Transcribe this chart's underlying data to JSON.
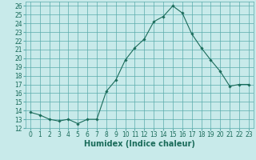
{
  "x": [
    0,
    1,
    2,
    3,
    4,
    5,
    6,
    7,
    8,
    9,
    10,
    11,
    12,
    13,
    14,
    15,
    16,
    17,
    18,
    19,
    20,
    21,
    22,
    23
  ],
  "y": [
    13.8,
    13.5,
    13.0,
    12.8,
    13.0,
    12.5,
    13.0,
    13.0,
    16.2,
    17.5,
    19.8,
    21.2,
    22.2,
    24.2,
    24.8,
    26.0,
    25.2,
    22.8,
    21.2,
    19.8,
    18.5,
    16.8,
    17.0,
    17.0
  ],
  "line_color": "#1a6b5a",
  "marker": "D",
  "marker_size": 1.8,
  "bg_color": "#c8eaea",
  "grid_color": "#5aabab",
  "xlabel": "Humidex (Indice chaleur)",
  "xlim": [
    -0.5,
    23.5
  ],
  "ylim": [
    12,
    26.5
  ],
  "yticks": [
    12,
    13,
    14,
    15,
    16,
    17,
    18,
    19,
    20,
    21,
    22,
    23,
    24,
    25,
    26
  ],
  "xticks": [
    0,
    1,
    2,
    3,
    4,
    5,
    6,
    7,
    8,
    9,
    10,
    11,
    12,
    13,
    14,
    15,
    16,
    17,
    18,
    19,
    20,
    21,
    22,
    23
  ],
  "tick_label_fontsize": 5.5,
  "xlabel_fontsize": 7.0
}
